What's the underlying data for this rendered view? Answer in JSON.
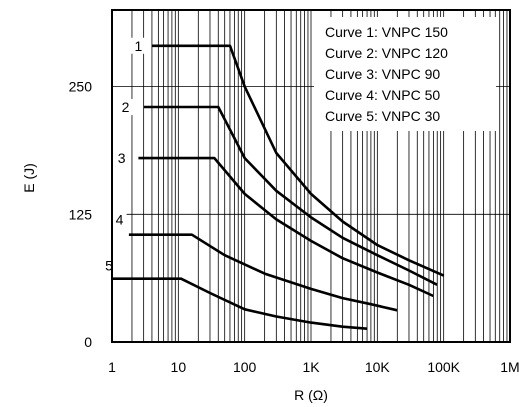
{
  "chart_data": {
    "type": "line",
    "xscale": "log",
    "xlim": [
      1,
      1000000
    ],
    "ylim": [
      0,
      325
    ],
    "xticks": [
      {
        "value": 1,
        "label": "1"
      },
      {
        "value": 10,
        "label": "10"
      },
      {
        "value": 100,
        "label": "100"
      },
      {
        "value": 1000,
        "label": "1K"
      },
      {
        "value": 10000,
        "label": "10K"
      },
      {
        "value": 100000,
        "label": "100K"
      },
      {
        "value": 1000000,
        "label": "1M"
      }
    ],
    "yticks": [
      {
        "value": 0,
        "label": "0"
      },
      {
        "value": 125,
        "label": "125"
      },
      {
        "value": 250,
        "label": "250"
      }
    ],
    "xlabel": "R (Ω)",
    "ylabel": "E (J)",
    "grid": true,
    "legend_position": "top-right",
    "legend": [
      "Curve 1: VNPC 150",
      "Curve 2: VNPC 120",
      "Curve 3: VNPC 90",
      "Curve 4: VNPC 50",
      "Curve 5: VNPC 30"
    ],
    "series": [
      {
        "label": "1",
        "points": [
          [
            4,
            290
          ],
          [
            60,
            290
          ],
          [
            100,
            250
          ],
          [
            300,
            185
          ],
          [
            1000,
            145
          ],
          [
            3000,
            118
          ],
          [
            10000,
            95
          ],
          [
            30000,
            80
          ],
          [
            100000,
            65
          ]
        ]
      },
      {
        "label": "2",
        "points": [
          [
            3,
            230
          ],
          [
            40,
            230
          ],
          [
            100,
            180
          ],
          [
            300,
            148
          ],
          [
            1000,
            122
          ],
          [
            3000,
            102
          ],
          [
            10000,
            85
          ],
          [
            30000,
            70
          ],
          [
            80000,
            56
          ]
        ]
      },
      {
        "label": "3",
        "points": [
          [
            2.5,
            180
          ],
          [
            35,
            180
          ],
          [
            100,
            145
          ],
          [
            300,
            120
          ],
          [
            1000,
            99
          ],
          [
            3000,
            82
          ],
          [
            10000,
            68
          ],
          [
            30000,
            56
          ],
          [
            70000,
            45
          ]
        ]
      },
      {
        "label": "4",
        "points": [
          [
            1.8,
            105
          ],
          [
            16,
            105
          ],
          [
            50,
            85
          ],
          [
            200,
            67
          ],
          [
            1000,
            52
          ],
          [
            3000,
            43
          ],
          [
            8000,
            37
          ],
          [
            20000,
            31
          ]
        ]
      },
      {
        "label": "5",
        "points": [
          [
            1,
            62
          ],
          [
            11,
            62
          ],
          [
            30,
            48
          ],
          [
            100,
            32
          ],
          [
            300,
            25
          ],
          [
            1000,
            19
          ],
          [
            3000,
            15
          ],
          [
            7000,
            13
          ]
        ]
      }
    ],
    "curve_labels": [
      {
        "text": "1",
        "x": 2.5,
        "y": 290
      },
      {
        "text": "2",
        "x": 1.6,
        "y": 230
      },
      {
        "text": "3",
        "x": 1.4,
        "y": 180
      },
      {
        "text": "4",
        "x": 1.3,
        "y": 120
      },
      {
        "text": "5",
        "x": 0.9,
        "y": 75
      }
    ]
  }
}
